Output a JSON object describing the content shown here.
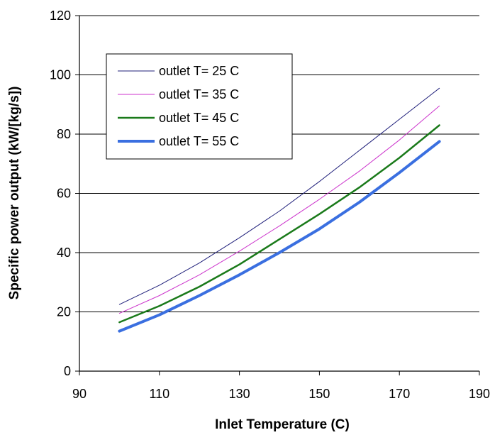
{
  "chart_data": {
    "type": "line",
    "xlabel": "Inlet Temperature (C)",
    "ylabel": "Specific power output (kW/[kg/s])",
    "xlim": [
      90,
      190
    ],
    "ylim": [
      0,
      120
    ],
    "xticks": [
      90,
      110,
      130,
      150,
      170,
      190
    ],
    "yticks": [
      0,
      20,
      40,
      60,
      80,
      100,
      120
    ],
    "grid": "horizontal",
    "legend_position": "top-left",
    "x": [
      100,
      110,
      120,
      130,
      140,
      150,
      160,
      170,
      180
    ],
    "series": [
      {
        "name": "outlet T= 25 C",
        "color": "#1f1f7a",
        "values": [
          22.5,
          29.0,
          36.5,
          45.0,
          54.0,
          64.0,
          74.5,
          85.0,
          95.5
        ]
      },
      {
        "name": "outlet T= 35 C",
        "color": "#cc33cc",
        "values": [
          19.5,
          25.5,
          32.5,
          40.5,
          49.0,
          58.0,
          67.5,
          78.0,
          89.5
        ]
      },
      {
        "name": "outlet T= 45 C",
        "color": "#1a7a1a",
        "values": [
          16.5,
          22.0,
          28.5,
          36.0,
          44.5,
          53.0,
          62.0,
          72.0,
          83.0
        ]
      },
      {
        "name": "outlet T= 55 C",
        "color": "#3a6fe0",
        "values": [
          13.5,
          19.0,
          25.5,
          32.5,
          40.0,
          48.0,
          57.0,
          67.0,
          77.5
        ]
      }
    ]
  }
}
